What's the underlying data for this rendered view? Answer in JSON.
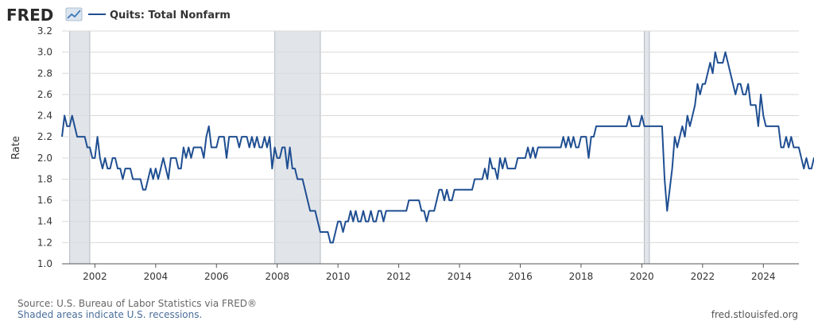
{
  "header": {
    "logo_text": "FRED",
    "logo_icon": "fred-chart-icon"
  },
  "footer": {
    "source": "Source: U.S. Bureau of Labor Statistics via FRED®",
    "recession_note": "Shaded areas indicate U.S. recessions.",
    "site": "fred.stlouisfed.org"
  },
  "colors": {
    "series": "#1f4e91",
    "recession": "#e1e5ea",
    "grid": "#d9d9d9",
    "axis": "#555555"
  },
  "chart_data": {
    "type": "line",
    "title": "",
    "xlabel": "",
    "ylabel": "Rate",
    "xlim": [
      2000.917,
      2025.17
    ],
    "ylim": [
      1.0,
      3.2
    ],
    "x_ticks": [
      2002,
      2004,
      2006,
      2008,
      2010,
      2012,
      2014,
      2016,
      2018,
      2020,
      2022,
      2024
    ],
    "y_ticks": [
      1.0,
      1.2,
      1.4,
      1.6,
      1.8,
      2.0,
      2.2,
      2.4,
      2.6,
      2.8,
      3.0,
      3.2
    ],
    "grid": "horizontal",
    "legend_position": "top-left",
    "recessions": [
      [
        2001.17,
        2001.83
      ],
      [
        2007.92,
        2009.42
      ],
      [
        2020.08,
        2020.25
      ]
    ],
    "series": [
      {
        "name": "Quits: Total Nonfarm",
        "start": "2000-12",
        "frequency": "monthly",
        "values": [
          2.2,
          2.4,
          2.3,
          2.3,
          2.4,
          2.3,
          2.2,
          2.2,
          2.2,
          2.2,
          2.1,
          2.1,
          2.0,
          2.0,
          2.2,
          2.0,
          1.9,
          2.0,
          1.9,
          1.9,
          2.0,
          2.0,
          1.9,
          1.9,
          1.8,
          1.9,
          1.9,
          1.9,
          1.8,
          1.8,
          1.8,
          1.8,
          1.7,
          1.7,
          1.8,
          1.9,
          1.8,
          1.9,
          1.8,
          1.9,
          2.0,
          1.9,
          1.8,
          2.0,
          2.0,
          2.0,
          1.9,
          1.9,
          2.1,
          2.0,
          2.1,
          2.0,
          2.1,
          2.1,
          2.1,
          2.1,
          2.0,
          2.2,
          2.3,
          2.1,
          2.1,
          2.1,
          2.2,
          2.2,
          2.2,
          2.0,
          2.2,
          2.2,
          2.2,
          2.2,
          2.1,
          2.2,
          2.2,
          2.2,
          2.1,
          2.2,
          2.1,
          2.2,
          2.1,
          2.1,
          2.2,
          2.1,
          2.2,
          1.9,
          2.1,
          2.0,
          2.0,
          2.1,
          2.1,
          1.9,
          2.1,
          1.9,
          1.9,
          1.8,
          1.8,
          1.8,
          1.7,
          1.6,
          1.5,
          1.5,
          1.5,
          1.4,
          1.3,
          1.3,
          1.3,
          1.3,
          1.2,
          1.2,
          1.3,
          1.4,
          1.4,
          1.3,
          1.4,
          1.4,
          1.5,
          1.4,
          1.5,
          1.4,
          1.4,
          1.5,
          1.4,
          1.4,
          1.5,
          1.4,
          1.4,
          1.5,
          1.5,
          1.4,
          1.5,
          1.5,
          1.5,
          1.5,
          1.5,
          1.5,
          1.5,
          1.5,
          1.5,
          1.6,
          1.6,
          1.6,
          1.6,
          1.6,
          1.5,
          1.5,
          1.4,
          1.5,
          1.5,
          1.5,
          1.6,
          1.7,
          1.7,
          1.6,
          1.7,
          1.6,
          1.6,
          1.7,
          1.7,
          1.7,
          1.7,
          1.7,
          1.7,
          1.7,
          1.7,
          1.8,
          1.8,
          1.8,
          1.8,
          1.9,
          1.8,
          2.0,
          1.9,
          1.9,
          1.8,
          2.0,
          1.9,
          2.0,
          1.9,
          1.9,
          1.9,
          1.9,
          2.0,
          2.0,
          2.0,
          2.0,
          2.1,
          2.0,
          2.1,
          2.0,
          2.1,
          2.1,
          2.1,
          2.1,
          2.1,
          2.1,
          2.1,
          2.1,
          2.1,
          2.1,
          2.2,
          2.1,
          2.2,
          2.1,
          2.2,
          2.1,
          2.1,
          2.2,
          2.2,
          2.2,
          2.0,
          2.2,
          2.2,
          2.3,
          2.3,
          2.3,
          2.3,
          2.3,
          2.3,
          2.3,
          2.3,
          2.3,
          2.3,
          2.3,
          2.3,
          2.3,
          2.4,
          2.3,
          2.3,
          2.3,
          2.3,
          2.4,
          2.3,
          2.3,
          2.3,
          2.3,
          2.3,
          2.3,
          2.3,
          2.3,
          1.8,
          1.5,
          1.7,
          1.9,
          2.2,
          2.1,
          2.2,
          2.3,
          2.2,
          2.4,
          2.3,
          2.4,
          2.5,
          2.7,
          2.6,
          2.7,
          2.7,
          2.8,
          2.9,
          2.8,
          3.0,
          2.9,
          2.9,
          2.9,
          3.0,
          2.9,
          2.8,
          2.7,
          2.6,
          2.7,
          2.7,
          2.6,
          2.6,
          2.7,
          2.5,
          2.5,
          2.5,
          2.3,
          2.6,
          2.4,
          2.3,
          2.3,
          2.3,
          2.3,
          2.3,
          2.3,
          2.1,
          2.1,
          2.2,
          2.1,
          2.2,
          2.1,
          2.1,
          2.1,
          2.0,
          1.9,
          2.0,
          1.9,
          1.9,
          2.0,
          2.0,
          2.1
        ]
      }
    ]
  }
}
